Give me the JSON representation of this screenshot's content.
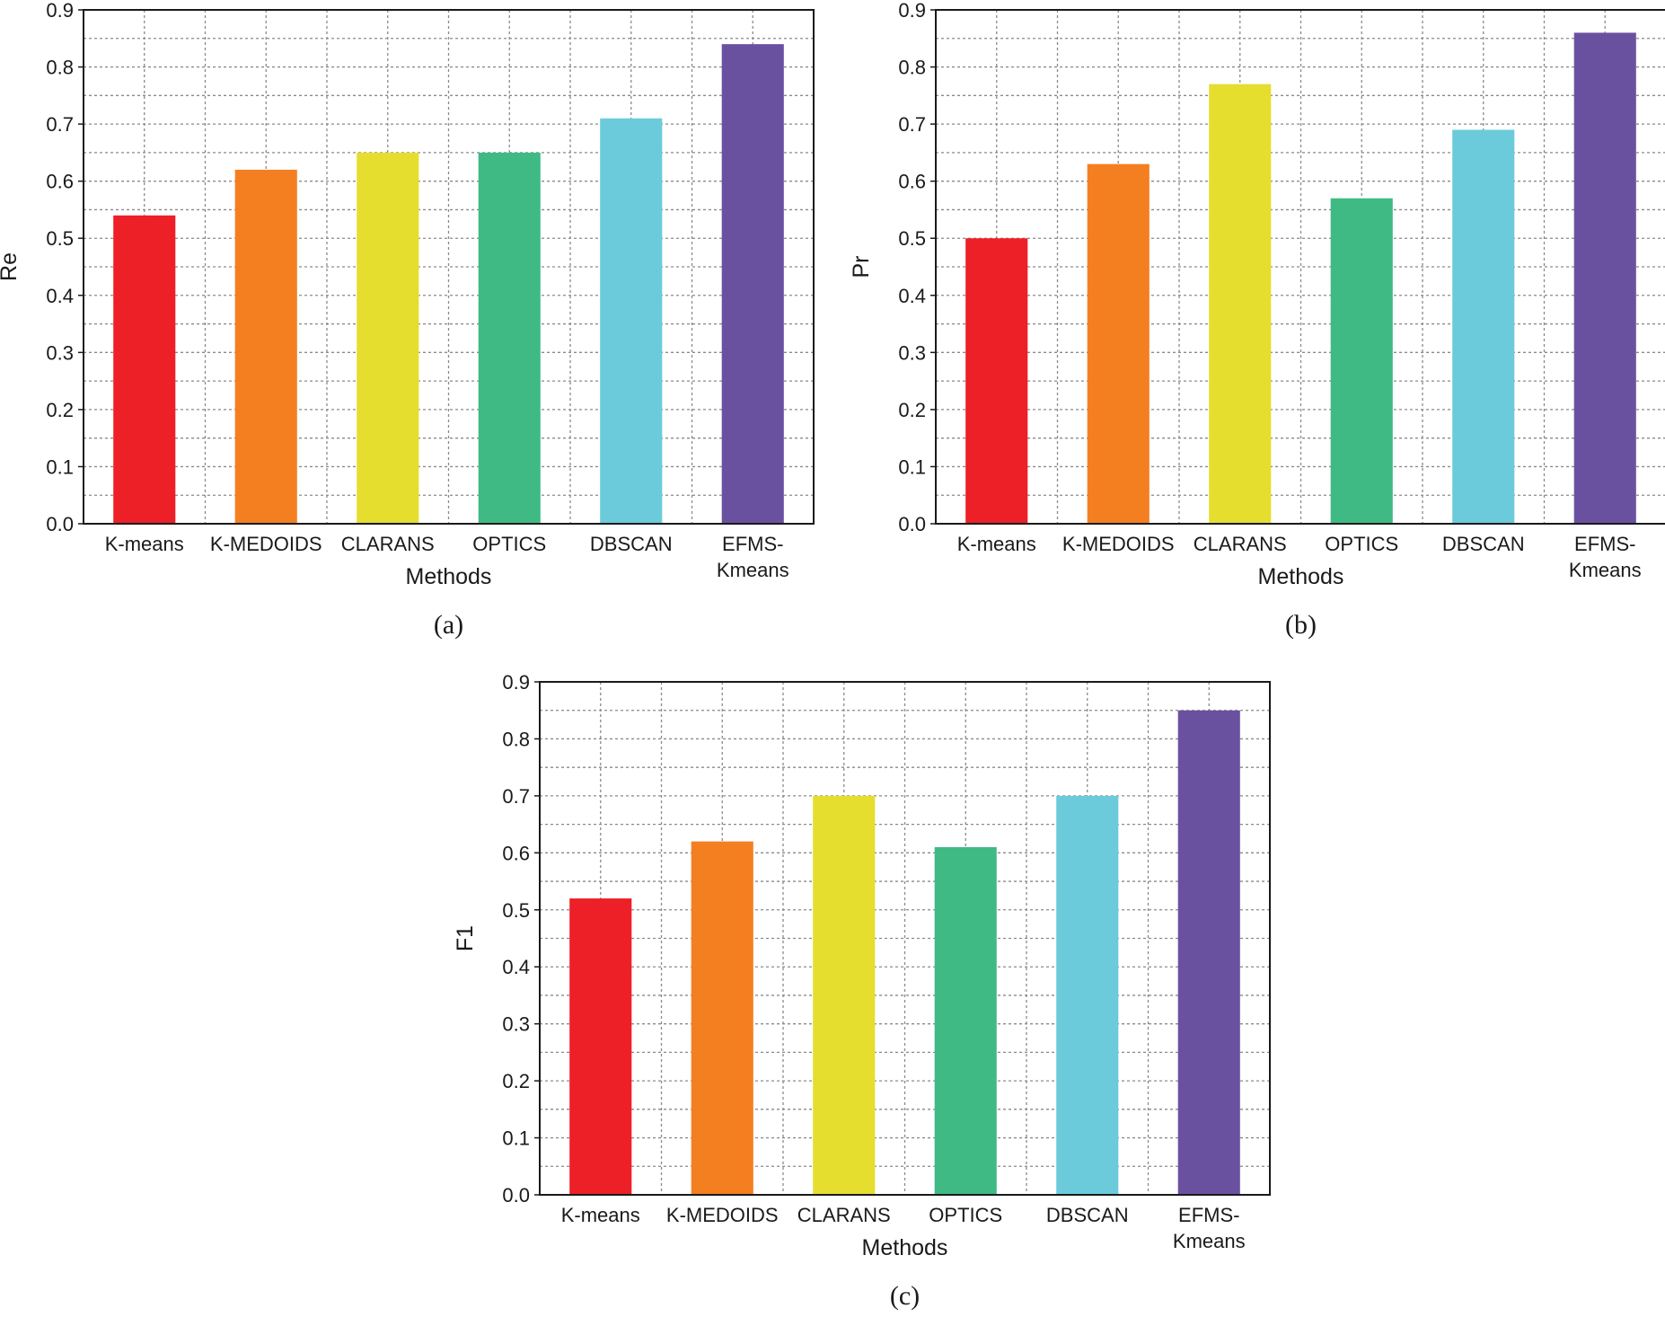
{
  "chart_data": [
    {
      "type": "bar",
      "caption": "(a)",
      "xlabel": "Methods",
      "ylabel": "Re",
      "ylim": [
        0,
        0.9
      ],
      "yticks": [
        "0.0",
        "0.1",
        "0.2",
        "0.3",
        "0.4",
        "0.5",
        "0.6",
        "0.7",
        "0.8",
        "0.9"
      ],
      "grid": true,
      "categories": [
        "K-means",
        "K-MEDOIDS",
        "CLARANS",
        "OPTICS",
        "DBSCAN",
        "EFMS-\nKmeans"
      ],
      "values": [
        0.54,
        0.62,
        0.65,
        0.65,
        0.71,
        0.84
      ],
      "colors": [
        "#ed1f27",
        "#f47f20",
        "#e5de2f",
        "#3fba84",
        "#6bcbdb",
        "#6a51a0"
      ]
    },
    {
      "type": "bar",
      "caption": "(b)",
      "xlabel": "Methods",
      "ylabel": "Pr",
      "ylim": [
        0,
        0.9
      ],
      "yticks": [
        "0.0",
        "0.1",
        "0.2",
        "0.3",
        "0.4",
        "0.5",
        "0.6",
        "0.7",
        "0.8",
        "0.9"
      ],
      "grid": true,
      "categories": [
        "K-means",
        "K-MEDOIDS",
        "CLARANS",
        "OPTICS",
        "DBSCAN",
        "EFMS-\nKmeans"
      ],
      "values": [
        0.5,
        0.63,
        0.77,
        0.57,
        0.69,
        0.86
      ],
      "colors": [
        "#ed1f27",
        "#f47f20",
        "#e5de2f",
        "#3fba84",
        "#6bcbdb",
        "#6a51a0"
      ]
    },
    {
      "type": "bar",
      "caption": "(c)",
      "xlabel": "Methods",
      "ylabel": "F1",
      "ylim": [
        0,
        0.9
      ],
      "yticks": [
        "0.0",
        "0.1",
        "0.2",
        "0.3",
        "0.4",
        "0.5",
        "0.6",
        "0.7",
        "0.8",
        "0.9"
      ],
      "grid": true,
      "categories": [
        "K-means",
        "K-MEDOIDS",
        "CLARANS",
        "OPTICS",
        "DBSCAN",
        "EFMS-\nKmeans"
      ],
      "values": [
        0.52,
        0.62,
        0.7,
        0.61,
        0.7,
        0.85
      ],
      "colors": [
        "#ed1f27",
        "#f47f20",
        "#e5de2f",
        "#3fba84",
        "#6bcbdb",
        "#6a51a0"
      ]
    }
  ]
}
